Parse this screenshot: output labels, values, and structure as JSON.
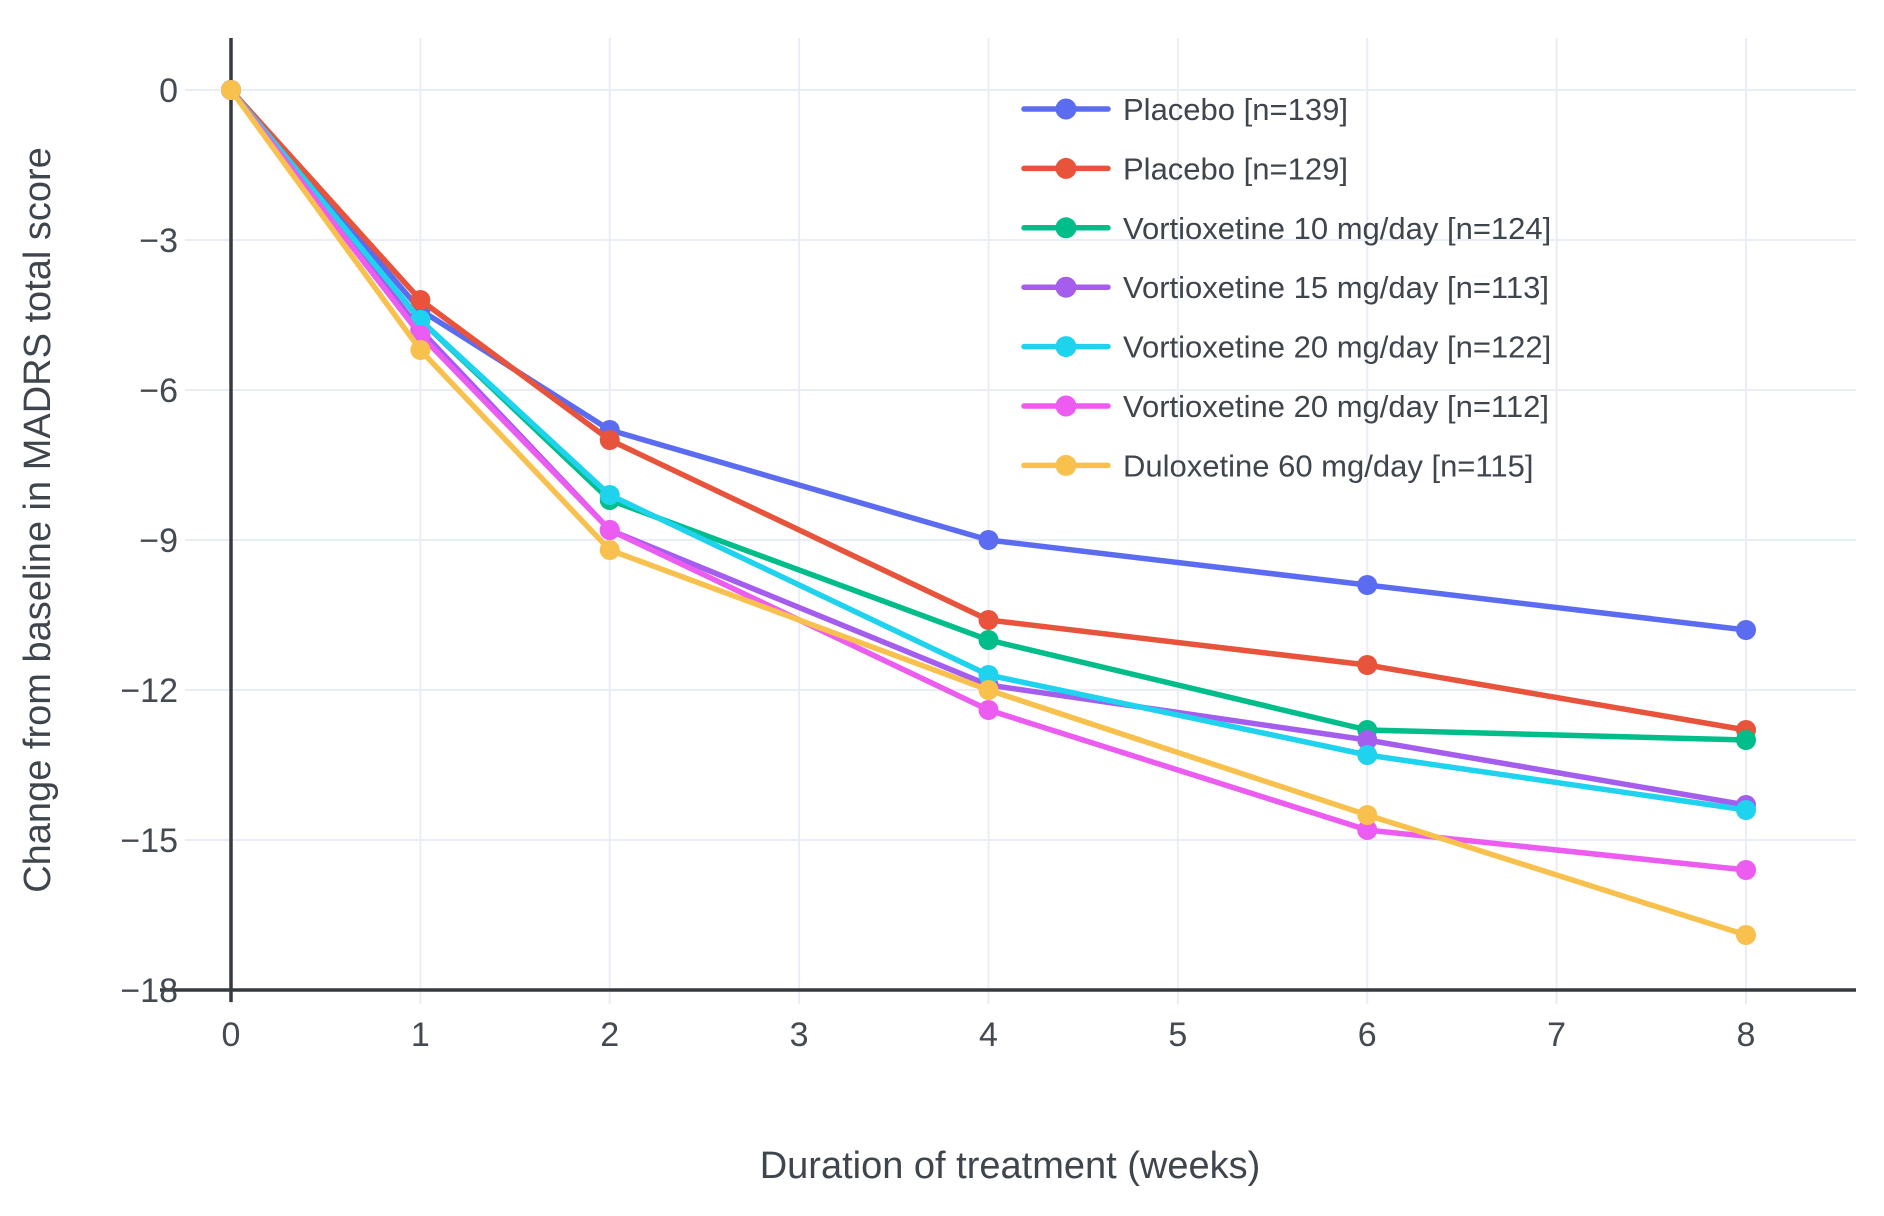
{
  "chart_data": {
    "type": "line",
    "title": "",
    "xlabel": "Duration of treatment (weeks)",
    "ylabel": "Change from baseline in MADRS total score",
    "x": [
      0,
      1,
      2,
      4,
      6,
      8
    ],
    "series": [
      {
        "name": "Placebo [n=139]",
        "color": "#5b6cf1",
        "values": [
          0,
          -4.4,
          -6.8,
          -9.0,
          -9.9,
          -10.8
        ]
      },
      {
        "name": "Placebo [n=129]",
        "color": "#e8533b",
        "values": [
          0,
          -4.2,
          -7.0,
          -10.6,
          -11.5,
          -12.8
        ]
      },
      {
        "name": "Vortioxetine 10 mg/day [n=124]",
        "color": "#00bd8a",
        "values": [
          0,
          -4.6,
          -8.2,
          -11.0,
          -12.8,
          -13.0
        ]
      },
      {
        "name": "Vortioxetine 15 mg/day [n=113]",
        "color": "#a55ded",
        "values": [
          0,
          -4.8,
          -8.8,
          -11.9,
          -13.0,
          -14.3
        ]
      },
      {
        "name": "Vortioxetine 20 mg/day [n=122]",
        "color": "#1fd3ee",
        "values": [
          0,
          -4.6,
          -8.1,
          -11.7,
          -13.3,
          -14.4
        ]
      },
      {
        "name": "Vortioxetine 20 mg/day [n=112]",
        "color": "#ec5cf0",
        "values": [
          0,
          -4.9,
          -8.8,
          -12.4,
          -14.8,
          -15.6
        ]
      },
      {
        "name": "Duloxetine 60 mg/day [n=115]",
        "color": "#f8c14e",
        "values": [
          0,
          -5.2,
          -9.2,
          -12.0,
          -14.5,
          -16.9
        ]
      }
    ],
    "x_ticks": [
      0,
      1,
      2,
      3,
      4,
      5,
      6,
      7,
      8
    ],
    "x_tick_labels": [
      "0",
      "1",
      "2",
      "3",
      "4",
      "5",
      "6",
      "7",
      "8"
    ],
    "y_ticks": [
      0,
      -3,
      -6,
      -9,
      -12,
      -15,
      -18
    ],
    "y_tick_labels": [
      "0",
      "−3",
      "−6",
      "−9",
      "−12",
      "−15",
      "−18"
    ],
    "xlim": [
      0,
      8
    ],
    "ylim": [
      -18,
      0
    ],
    "grid": true,
    "legend_position": "top-right"
  },
  "styles": {
    "background": "#ffffff",
    "grid_color": "#e9edf5",
    "axis_color": "#353a40",
    "text_color": "#444a52"
  }
}
